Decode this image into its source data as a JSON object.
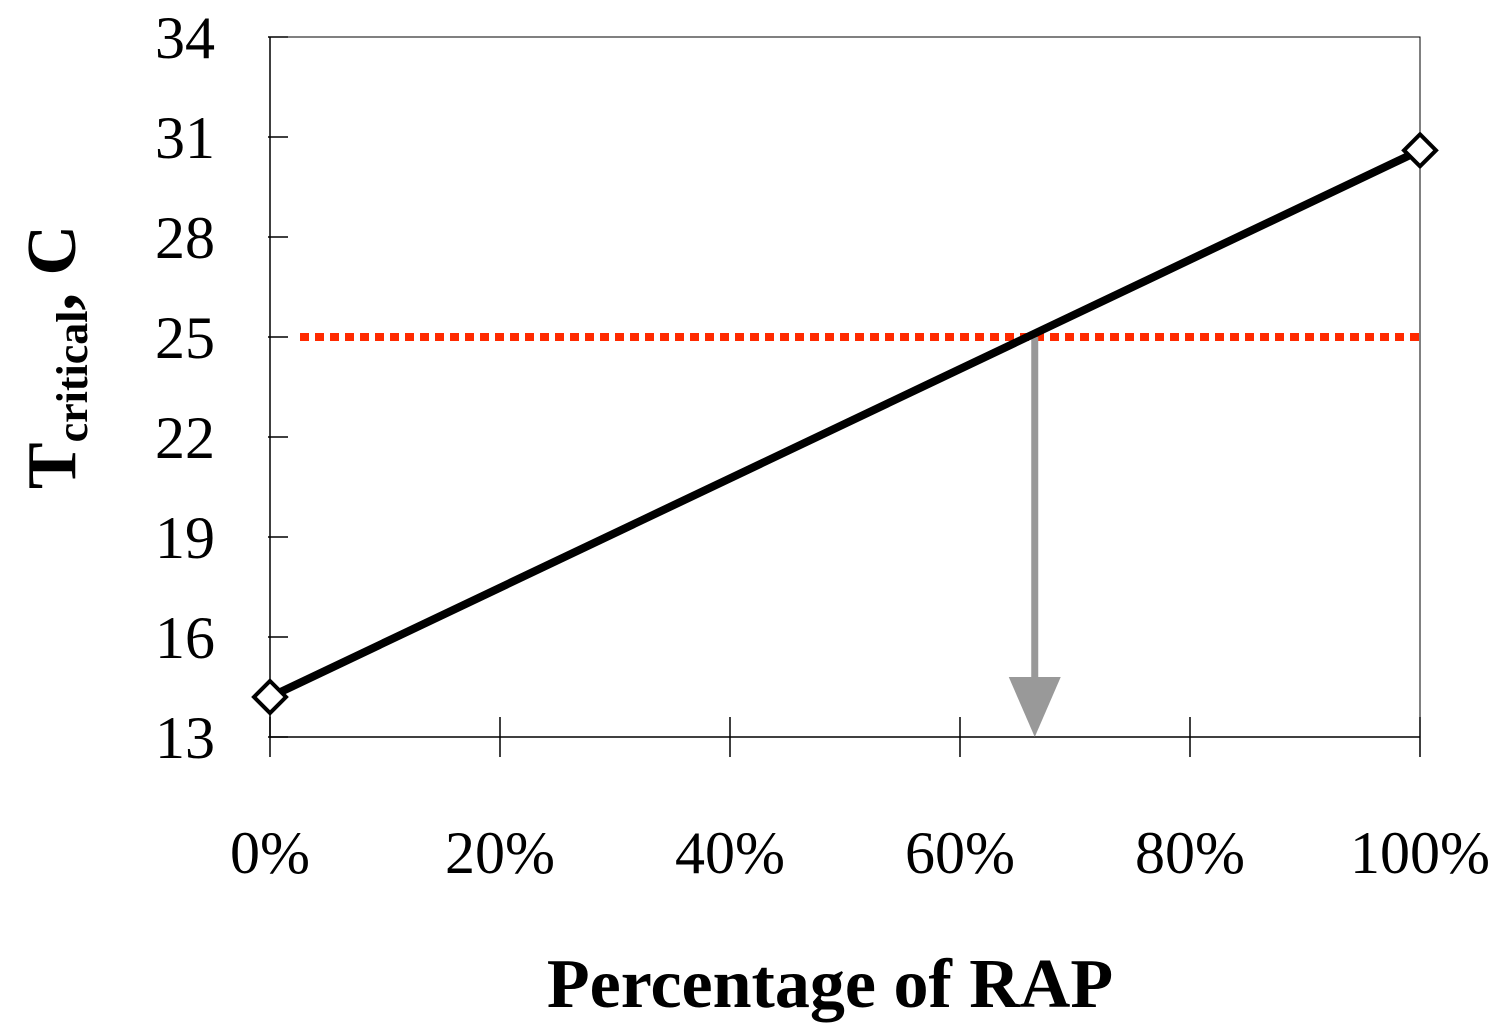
{
  "chart_data": {
    "type": "line",
    "xlabel": "Percentage of RAP",
    "ylabel": {
      "main": "T",
      "subscript": "critical",
      "suffix": ", C"
    },
    "x_ticks": [
      {
        "value": 0,
        "label": "0%"
      },
      {
        "value": 20,
        "label": "20%"
      },
      {
        "value": 40,
        "label": "40%"
      },
      {
        "value": 60,
        "label": "60%"
      },
      {
        "value": 80,
        "label": "80%"
      },
      {
        "value": 100,
        "label": "100%"
      }
    ],
    "y_ticks": [
      {
        "value": 13,
        "label": "13"
      },
      {
        "value": 16,
        "label": "16"
      },
      {
        "value": 19,
        "label": "19"
      },
      {
        "value": 22,
        "label": "22"
      },
      {
        "value": 25,
        "label": "25"
      },
      {
        "value": 28,
        "label": "28"
      },
      {
        "value": 31,
        "label": "31"
      },
      {
        "value": 34,
        "label": "34"
      }
    ],
    "xlim": [
      0,
      100
    ],
    "ylim": [
      13,
      34
    ],
    "series": [
      {
        "color": "#000000",
        "marker": "diamond-open",
        "points": [
          {
            "x": 0,
            "y": 14.2
          },
          {
            "x": 100,
            "y": 30.6
          }
        ]
      }
    ],
    "reference_line": {
      "y": 25,
      "color": "#ff2a00",
      "style": "dotted"
    },
    "indicator_arrow": {
      "x": 66.5,
      "from_y": 25,
      "to_y": 13,
      "color": "#999999"
    },
    "grid": false,
    "legend": "none"
  }
}
